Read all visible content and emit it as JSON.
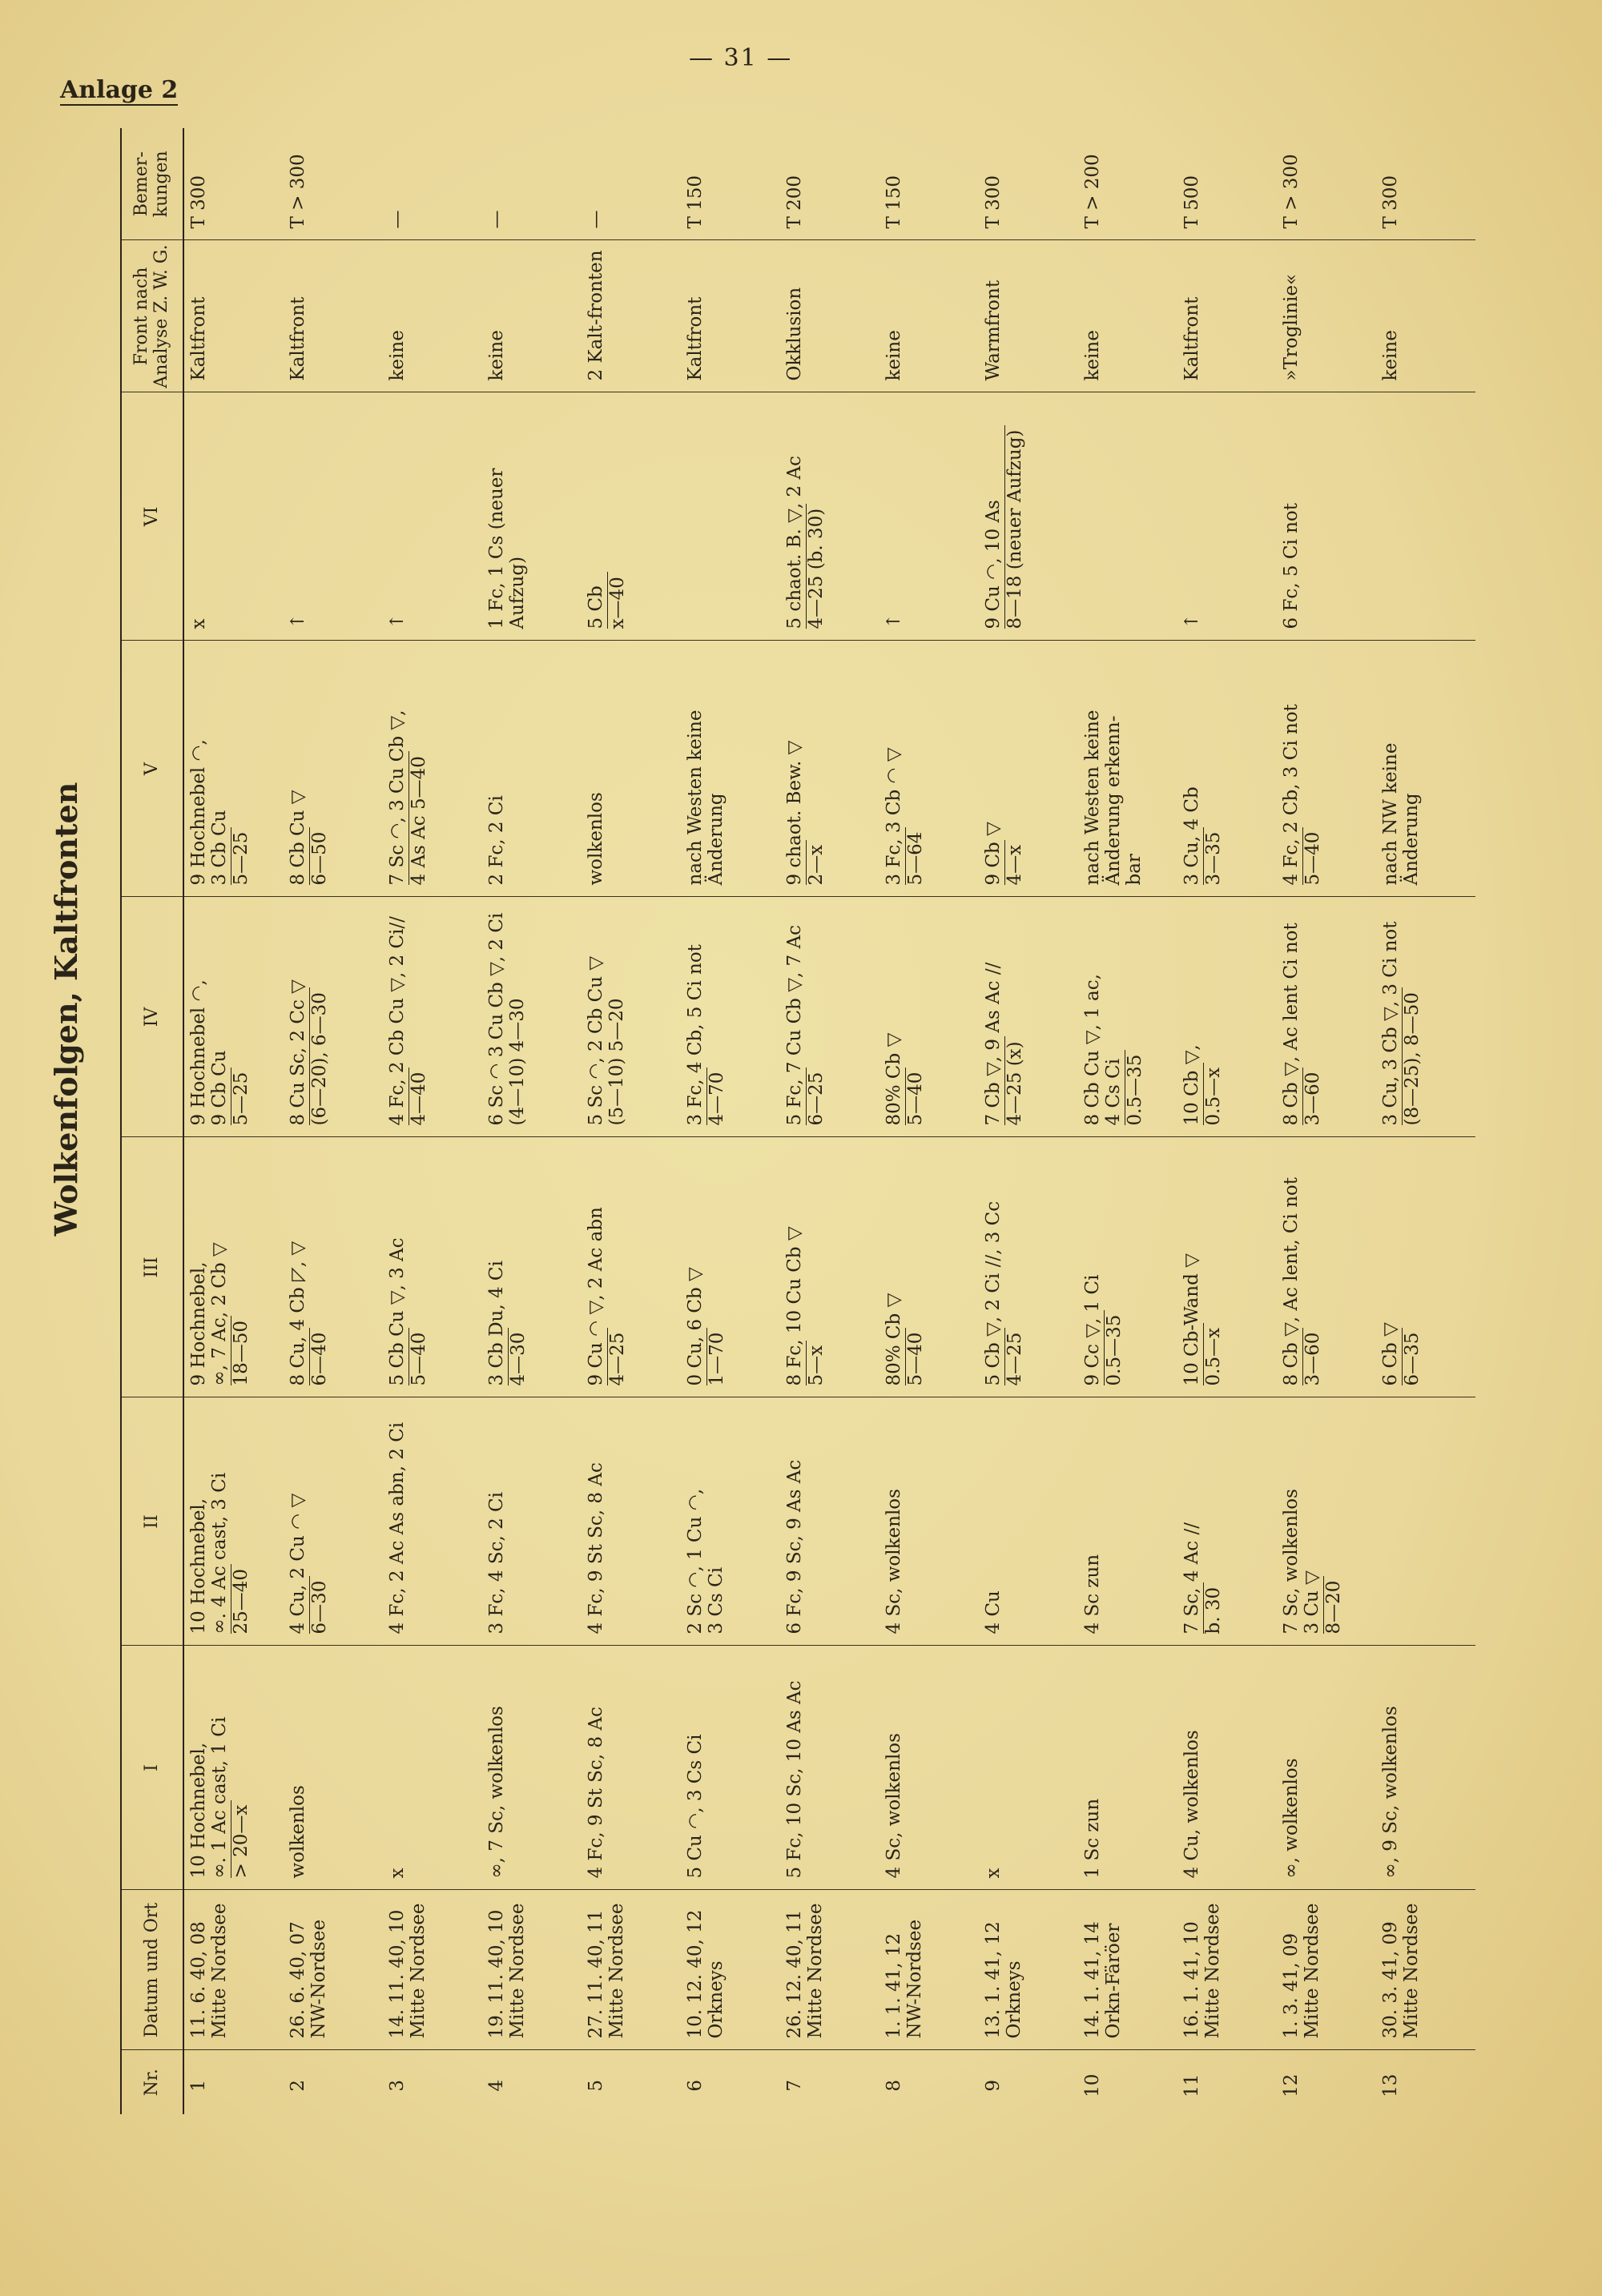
{
  "page_number": "— 31 —",
  "appendix_label": "Anlage 2",
  "title": "Wolkenfolgen, Kaltfronten",
  "columns": [
    "Nr.",
    "Datum und Ort",
    "I",
    "II",
    "III",
    "IV",
    "V",
    "VI",
    "Front nach Analyse Z. W. G.",
    "Bemer-kungen"
  ],
  "rows": [
    {
      "nr": "1",
      "datum": [
        "11. 6. 40, 08",
        "Mitte Nordsee"
      ],
      "cells": [
        {
          "t": [
            "10 Hochnebel,",
            "∞. 1 Ac cast, 1 Ci"
          ],
          "d": [
            "> 20—x"
          ]
        },
        {
          "t": [
            "10 Hochnebel,",
            "∞. 4 Ac cast, 3 Ci"
          ],
          "d": [
            "25—40"
          ]
        },
        {
          "t": [
            "9 Hochnebel,",
            "∞, 7 Ac, 2 Cb ▽"
          ],
          "d": [
            "18—50"
          ]
        },
        {
          "t": [
            "9 Hochnebel ◠,",
            "9 Cb Cu"
          ],
          "d": [
            "5—25"
          ]
        },
        {
          "t": [
            "9 Hochnebel ◠,",
            "3 Cb Cu"
          ],
          "d": [
            "5—25"
          ]
        },
        {
          "t": [
            "x"
          ]
        }
      ],
      "front": "Kaltfront",
      "bem": "T 300"
    },
    {
      "nr": "2",
      "datum": [
        "26. 6. 40, 07",
        "NW-Nordsee"
      ],
      "cells": [
        {
          "t": [
            "wolkenlos"
          ]
        },
        {
          "t": [
            "4 Cu, 2 Cu ◠ ▽"
          ],
          "d": [
            "6—30"
          ]
        },
        {
          "t": [
            "8 Cu, 4 Cb ◸, ▽"
          ],
          "d": [
            "6—40"
          ]
        },
        {
          "t": [
            "8 Cu Sc, 2 Cc ▽"
          ],
          "d": [
            "(6—20), 6—30"
          ]
        },
        {
          "t": [
            "8 Cb Cu ▽"
          ],
          "d": [
            "6—50"
          ]
        },
        {
          "t": [
            "↑"
          ]
        }
      ],
      "front": "Kaltfront",
      "bem": "T > 300"
    },
    {
      "nr": "3",
      "datum": [
        "14. 11. 40, 10",
        "Mitte Nordsee"
      ],
      "cells": [
        {
          "t": [
            "x"
          ]
        },
        {
          "t": [
            "4 Fc, 2 Ac As abn, 2 Ci"
          ]
        },
        {
          "t": [
            "5 Cb Cu ▽, 3 Ac"
          ],
          "d": [
            "5—40"
          ]
        },
        {
          "t": [
            "4 Fc, 2 Cb Cu ▽, 2 Ci//"
          ],
          "d": [
            "4—40"
          ]
        },
        {
          "t": [
            "7 Sc ◠, 3 Cu Cb ▽,"
          ],
          "d": [
            "4 As Ac 5—40"
          ]
        },
        {
          "t": [
            "↑"
          ]
        }
      ],
      "front": "keine",
      "bem": "—"
    },
    {
      "nr": "4",
      "datum": [
        "19. 11. 40, 10",
        "Mitte Nordsee"
      ],
      "cells": [
        {
          "t": [
            "∞, 7 Sc, wolkenlos"
          ]
        },
        {
          "t": [
            "3 Fc, 4 Sc, 2 Ci"
          ]
        },
        {
          "t": [
            "3 Cb Du, 4 Ci"
          ],
          "d": [
            "4—30"
          ]
        },
        {
          "t": [
            "6 Sc ◠ 3 Cu Cb ▽, 2 Ci",
            "(4—10) 4—30"
          ]
        },
        {
          "t": [
            "2 Fc, 2 Ci"
          ]
        },
        {
          "t": [
            "1 Fc, 1 Cs (neuer",
            "Aufzug)"
          ]
        }
      ],
      "front": "keine",
      "bem": "—"
    },
    {
      "nr": "5",
      "datum": [
        "27. 11. 40, 11",
        "Mitte Nordsee"
      ],
      "cells": [
        {
          "t": [
            "4 Fc, 9 St Sc, 8 Ac"
          ]
        },
        {
          "t": [
            "4 Fc, 9 St Sc, 8 Ac"
          ]
        },
        {
          "t": [
            "9 Cu ◠ ▽, 2 Ac abn"
          ],
          "d": [
            "4—25"
          ]
        },
        {
          "t": [
            "5 Sc ◠, 2 Cb Cu ▽",
            "(5—10) 5—20"
          ]
        },
        {
          "t": [
            "wolkenlos"
          ]
        },
        {
          "t": [
            "5 Cb"
          ],
          "d": [
            "x—40"
          ]
        }
      ],
      "front": "2 Kalt-fronten",
      "bem": "—"
    },
    {
      "nr": "6",
      "datum": [
        "10. 12. 40, 12",
        "Orkneys"
      ],
      "cells": [
        {
          "t": [
            "5 Cu ◠, 3 Cs Ci"
          ]
        },
        {
          "t": [
            "2 Sc ◠, 1 Cu ◠,",
            "3 Cs Ci"
          ]
        },
        {
          "t": [
            "0 Cu, 6 Cb ▽"
          ],
          "d": [
            "1—70"
          ]
        },
        {
          "t": [
            "3 Fc, 4 Cb, 5 Ci not"
          ],
          "d": [
            "4—70"
          ]
        },
        {
          "t": [
            "nach Westen keine",
            "Änderung"
          ]
        },
        {
          "t": []
        }
      ],
      "front": "Kaltfront",
      "bem": "T 150"
    },
    {
      "nr": "7",
      "datum": [
        "26. 12. 40, 11",
        "Mitte Nordsee"
      ],
      "cells": [
        {
          "t": [
            "5 Fc, 10 Sc, 10 As Ac"
          ]
        },
        {
          "t": [
            "6 Fc, 9 Sc, 9 As Ac"
          ]
        },
        {
          "t": [
            "8 Fc, 10 Cu Cb ▽"
          ],
          "d": [
            "5—x"
          ]
        },
        {
          "t": [
            "5 Fc, 7 Cu Cb ▽, 7 Ac"
          ],
          "d": [
            "6—25"
          ]
        },
        {
          "t": [
            "9 chaot. Bew. ▽"
          ],
          "d": [
            "2—x"
          ]
        },
        {
          "t": [
            "5 chaot. B. ▽, 2 Ac"
          ],
          "d": [
            "4—25    (b. 30)"
          ]
        }
      ],
      "front": "Okklusion",
      "bem": "T 200"
    },
    {
      "nr": "8",
      "datum": [
        "1. 1. 41, 12",
        "NW-Nordsee"
      ],
      "cells": [
        {
          "t": [
            "4 Sc, wolkenlos"
          ]
        },
        {
          "t": [
            "4 Sc, wolkenlos"
          ]
        },
        {
          "t": [
            "80% Cb ▽"
          ],
          "d": [
            "5—40"
          ]
        },
        {
          "t": [
            "80% Cb ▽"
          ],
          "d": [
            "5—40"
          ]
        },
        {
          "t": [
            "3 Fc, 3 Cb ◠ ▽"
          ],
          "d": [
            "5—64"
          ]
        },
        {
          "t": [
            "↑"
          ]
        }
      ],
      "front": "keine",
      "bem": "T 150"
    },
    {
      "nr": "9",
      "datum": [
        "13. 1. 41, 12",
        "Orkneys"
      ],
      "cells": [
        {
          "t": [
            "x"
          ]
        },
        {
          "t": [
            "4 Cu"
          ]
        },
        {
          "t": [
            "5 Cb ▽, 2 Ci //, 3 Cc"
          ],
          "d": [
            "4—25"
          ]
        },
        {
          "t": [
            "7 Cb ▽, 9 As Ac //"
          ],
          "d": [
            "4—25 (x)"
          ]
        },
        {
          "t": [
            "9 Cb ▽"
          ],
          "d": [
            "4—x"
          ]
        },
        {
          "t": [
            "9 Cu ◠, 10 As"
          ],
          "d": [
            "8—18 (neuer Aufzug)"
          ]
        }
      ],
      "front": "Warmfront",
      "bem": "T 300"
    },
    {
      "nr": "10",
      "datum": [
        "14. 1. 41, 14",
        "Orkn-Färöer"
      ],
      "cells": [
        {
          "t": [
            "1 Sc zun"
          ]
        },
        {
          "t": [
            "4 Sc zun"
          ]
        },
        {
          "t": [
            "9 Cc ▽, 1 Ci"
          ],
          "d": [
            "0.5—35"
          ]
        },
        {
          "t": [
            "8 Cb Cu ▽, 1 ac,",
            "4 Cs Ci"
          ],
          "d": [
            "0.5—35"
          ]
        },
        {
          "t": [
            "nach Westen keine",
            "Änderung erkenn-",
            "bar"
          ]
        },
        {
          "t": []
        }
      ],
      "front": "keine",
      "bem": "T > 200"
    },
    {
      "nr": "11",
      "datum": [
        "16. 1. 41, 10",
        "Mitte Nordsee"
      ],
      "cells": [
        {
          "t": [
            "4 Cu, wolkenlos"
          ]
        },
        {
          "t": [
            "7 Sc, 4 Ac //"
          ],
          "d": [
            "b. 30"
          ]
        },
        {
          "t": [
            "10 Cb-Wand ▽"
          ],
          "d": [
            "0.5—x"
          ]
        },
        {
          "t": [
            "10 Cb ▽,"
          ],
          "d": [
            "0.5—x"
          ]
        },
        {
          "t": [
            "3 Cu, 4 Cb"
          ],
          "d": [
            "3—35"
          ]
        },
        {
          "t": [
            "↑"
          ]
        }
      ],
      "front": "Kaltfront",
      "bem": "T 500"
    },
    {
      "nr": "12",
      "datum": [
        "1. 3. 41, 09",
        "Mitte Nordsee"
      ],
      "cells": [
        {
          "t": [
            "∞, wolkenlos"
          ]
        },
        {
          "t": [
            "7 Sc, wolkenlos",
            "3 Cu ▽"
          ],
          "d": [
            "8—20"
          ]
        },
        {
          "t": [
            "8 Cb ▽, Ac lent, Ci not"
          ],
          "d": [
            "3—60"
          ]
        },
        {
          "t": [
            "8 Cb ▽, Ac lent Ci not"
          ],
          "d": [
            "3—60"
          ]
        },
        {
          "t": [
            "4 Fc, 2 Cb, 3 Ci not"
          ],
          "d": [
            "5—40"
          ]
        },
        {
          "t": [
            "6 Fc, 5 Ci not"
          ]
        }
      ],
      "front": "»Troglinie«",
      "bem": "T > 300"
    },
    {
      "nr": "13",
      "datum": [
        "30. 3. 41, 09",
        "Mitte Nordsee"
      ],
      "cells": [
        {
          "t": [
            "∞, 9 Sc, wolkenlos"
          ]
        },
        {
          "t": []
        },
        {
          "t": [
            "6 Cb ▽"
          ],
          "d": [
            "6—35"
          ]
        },
        {
          "t": [
            "3 Cu, 3 Cb ▽, 3 Ci not"
          ],
          "d": [
            "(8—25), 8—50"
          ]
        },
        {
          "t": [
            "nach NW keine",
            "Änderung"
          ]
        },
        {
          "t": []
        }
      ],
      "front": "keine",
      "bem": "T 300"
    }
  ]
}
